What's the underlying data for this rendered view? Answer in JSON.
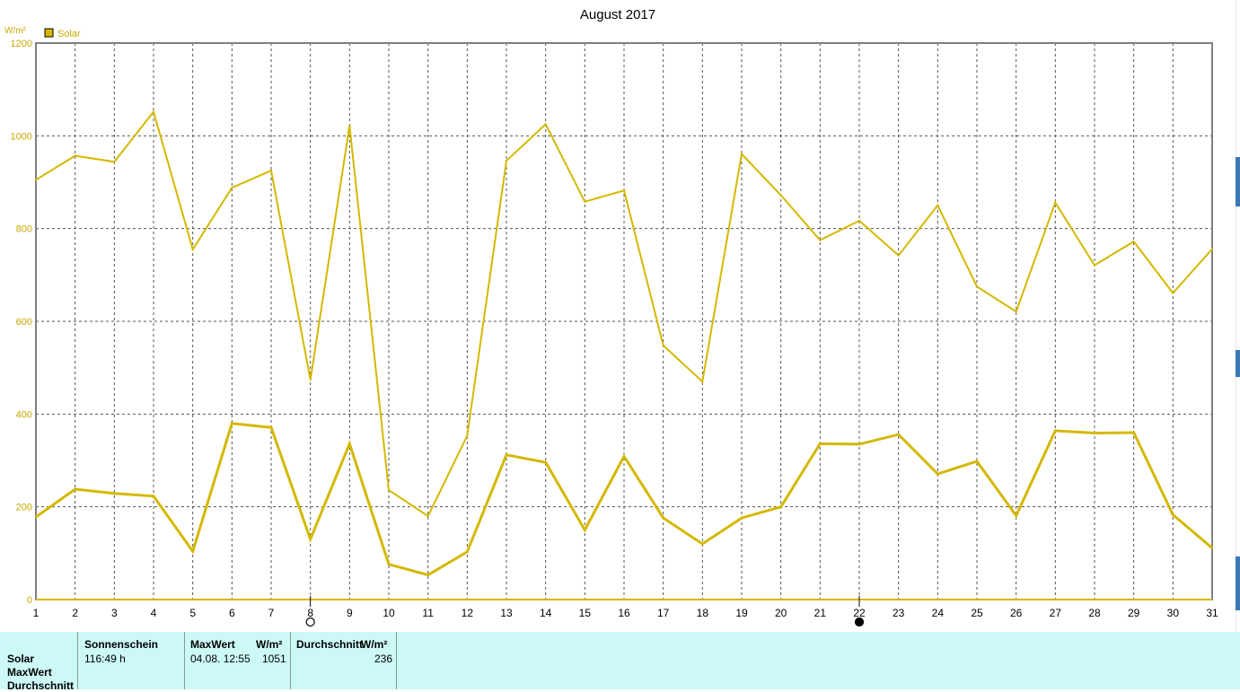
{
  "chart_data": {
    "type": "line",
    "title": "August 2017",
    "ylabel": "W/m²",
    "xlabel": "",
    "ylim": [
      0,
      1200
    ],
    "yticks": [
      0,
      200,
      400,
      600,
      800,
      1000,
      1200
    ],
    "x": [
      1,
      2,
      3,
      4,
      5,
      6,
      7,
      8,
      9,
      10,
      11,
      12,
      13,
      14,
      15,
      16,
      17,
      18,
      19,
      20,
      21,
      22,
      23,
      24,
      25,
      26,
      27,
      28,
      29,
      30,
      31
    ],
    "grid": true,
    "legend": "top-left",
    "series": [
      {
        "name": "Solar",
        "role": "max",
        "color": "#d4b800",
        "values": [
          905,
          957,
          944,
          1052,
          755,
          888,
          925,
          474,
          1022,
          236,
          180,
          353,
          946,
          1025,
          858,
          882,
          548,
          470,
          961,
          872,
          775,
          817,
          742,
          850,
          675,
          621,
          856,
          721,
          772,
          661,
          756
        ]
      },
      {
        "name": "Solar",
        "role": "average",
        "color": "#d4b800",
        "values": [
          178,
          238,
          229,
          223,
          104,
          380,
          371,
          130,
          336,
          76,
          53,
          103,
          312,
          296,
          150,
          309,
          176,
          120,
          176,
          200,
          336,
          335,
          356,
          271,
          298,
          181,
          364,
          359,
          360,
          183,
          111
        ]
      }
    ],
    "moon_markers": [
      {
        "day": 8,
        "phase": "full-moon"
      },
      {
        "day": 22,
        "phase": "new-moon"
      }
    ]
  },
  "stats": {
    "row_labels": [
      "Solar",
      "MaxWert",
      "Durchschnitt"
    ],
    "sunshine_header": "Sonnenschein",
    "sunshine_value": "116:49 h",
    "max_header": "MaxWert",
    "max_unit": "W/m²",
    "max_date": "04.08.  12:55",
    "max_value": "1051",
    "avg_header": "Durchschnitt",
    "avg_unit": "W/m²",
    "avg_value": "236"
  }
}
